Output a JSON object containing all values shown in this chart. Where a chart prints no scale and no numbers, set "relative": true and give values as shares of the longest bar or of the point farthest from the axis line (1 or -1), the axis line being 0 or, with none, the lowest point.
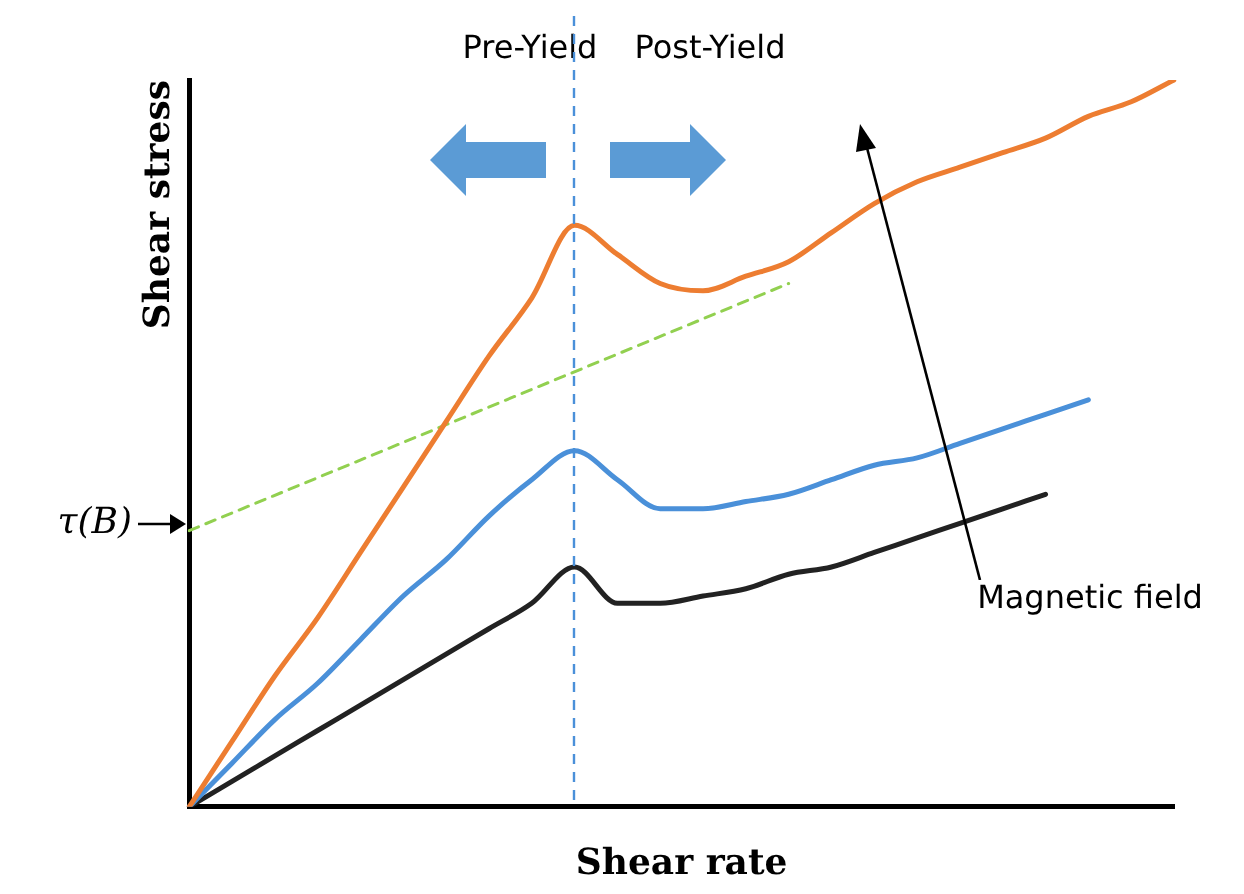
{
  "chart_data": {
    "type": "line",
    "relative": true,
    "xlabel": "Shear rate",
    "ylabel": "Shear stress",
    "categories": [
      null,
      null,
      null,
      null,
      null,
      null,
      null,
      null,
      null,
      null,
      null,
      null,
      null,
      null,
      null,
      null,
      null,
      null,
      null,
      null,
      null,
      null,
      null,
      null
    ],
    "series": [
      {
        "color": "#ed7d31",
        "values": [
          0,
          0.09,
          0.18,
          0.26,
          0.35,
          0.44,
          0.53,
          0.62,
          0.7,
          0.8,
          0.76,
          0.72,
          0.71,
          0.73,
          0.75,
          0.79,
          0.83,
          0.86,
          0.88,
          0.9,
          0.92,
          0.95,
          0.97,
          1.0
        ]
      },
      {
        "color": "#4a90d9",
        "values": [
          0,
          0.06,
          0.12,
          0.17,
          0.23,
          0.29,
          0.34,
          0.4,
          0.45,
          0.49,
          0.45,
          0.41,
          0.41,
          0.42,
          0.43,
          0.45,
          0.47,
          0.48,
          0.5,
          0.52,
          0.54,
          0.56,
          null,
          null
        ]
      },
      {
        "color": "#222222",
        "values": [
          0,
          0.035,
          0.07,
          0.105,
          0.14,
          0.175,
          0.21,
          0.245,
          0.28,
          0.33,
          0.28,
          0.28,
          0.29,
          0.3,
          0.32,
          0.33,
          0.35,
          0.37,
          0.39,
          0.41,
          0.43,
          null,
          null,
          null
        ]
      },
      {
        "color": "#92d050",
        "line_style": "dashed",
        "values": [
          0.38,
          null,
          null,
          null,
          null,
          null,
          null,
          null,
          null,
          null,
          null,
          null,
          null,
          null,
          0.72,
          null,
          null,
          null,
          null,
          null,
          null,
          null,
          null,
          null
        ]
      }
    ],
    "annotations": [
      "Pre-Yield",
      "Post-Yield",
      "τ(B)",
      "Magnetic field"
    ],
    "grid": false,
    "legend": false,
    "tick_labels": false,
    "marker": "none",
    "line_style": "solid"
  }
}
